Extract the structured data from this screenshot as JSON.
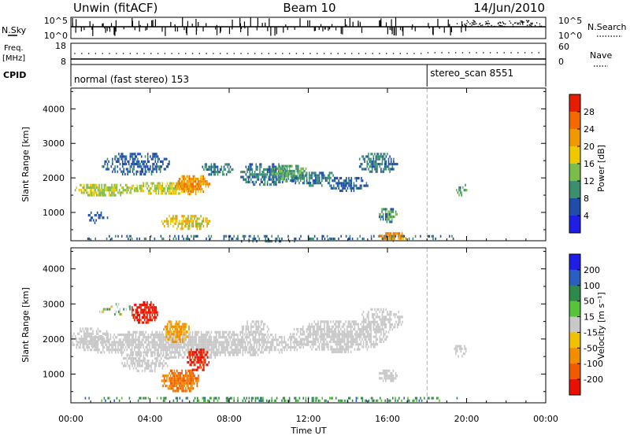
{
  "header": {
    "station": "Unwin (fitACF)",
    "beam": "Beam 10",
    "date": "14/Jun/2010"
  },
  "nsky_panel": {
    "left_label": "N.Sky",
    "right_label": "N.Search",
    "left_ticks": [
      "10^5",
      "10^0"
    ],
    "right_ticks": [
      "10^5",
      "10^0"
    ]
  },
  "freq_panel": {
    "left_label_1": "Freq.",
    "left_label_2": "[MHz]",
    "right_label": "Nave",
    "left_ticks": [
      "18",
      "8"
    ],
    "right_ticks": [
      "60",
      "0"
    ]
  },
  "cpid_panel": {
    "label": "CPID",
    "modes": [
      {
        "name": "normal (fast stereo) 153",
        "start_hour": 0
      },
      {
        "name": "stereo_scan 8551",
        "start_hour": 18
      }
    ]
  },
  "x_axis": {
    "title": "Time UT",
    "ticks": [
      "00:00",
      "04:00",
      "08:00",
      "12:00",
      "16:00",
      "20:00",
      "00:00"
    ],
    "range_hours": [
      0,
      24
    ]
  },
  "chart_data": [
    {
      "type": "heatmap",
      "name": "power",
      "ylabel": "Slant Range [km]",
      "ylim": [
        180,
        4600
      ],
      "yticks": [
        "1000",
        "2000",
        "3000",
        "4000"
      ],
      "colorbar_label": "Power [dB]",
      "colorbar_ticks": [
        "4",
        "8",
        "12",
        "16",
        "20",
        "24",
        "28"
      ],
      "colorbar_colors": [
        "#1e1ee6",
        "#1f4ea8",
        "#3b8f6e",
        "#7bbd4a",
        "#f0c800",
        "#f09a00",
        "#f26a00",
        "#e81c00"
      ],
      "cmap": "power",
      "blobs": [
        {
          "t": [
            0,
            3.2
          ],
          "r": [
            1500,
            1900
          ],
          "v": [
            12,
            18
          ],
          "d": 0.9
        },
        {
          "t": [
            3,
            6.2
          ],
          "r": [
            1550,
            1950
          ],
          "v": [
            13,
            20
          ],
          "d": 0.9
        },
        {
          "t": [
            1.5,
            5
          ],
          "r": [
            2100,
            2800
          ],
          "v": [
            4,
            9
          ],
          "d": 0.65
        },
        {
          "t": [
            5.2,
            7
          ],
          "r": [
            1550,
            2150
          ],
          "v": [
            18,
            28
          ],
          "d": 0.9
        },
        {
          "t": [
            4.5,
            7
          ],
          "r": [
            500,
            1000
          ],
          "v": [
            14,
            24
          ],
          "d": 0.8
        },
        {
          "t": [
            6.5,
            8.3
          ],
          "r": [
            2100,
            2500
          ],
          "v": [
            6,
            12
          ],
          "d": 0.7
        },
        {
          "t": [
            8.5,
            11
          ],
          "r": [
            1800,
            2500
          ],
          "v": [
            5,
            12
          ],
          "d": 0.7
        },
        {
          "t": [
            10,
            12
          ],
          "r": [
            1900,
            2450
          ],
          "v": [
            8,
            16
          ],
          "d": 0.8
        },
        {
          "t": [
            11,
            13.5
          ],
          "r": [
            1800,
            2250
          ],
          "v": [
            6,
            12
          ],
          "d": 0.75
        },
        {
          "t": [
            13,
            15
          ],
          "r": [
            1600,
            2100
          ],
          "v": [
            4,
            9
          ],
          "d": 0.7
        },
        {
          "t": [
            14.5,
            16.5
          ],
          "r": [
            2150,
            2800
          ],
          "v": [
            5,
            12
          ],
          "d": 0.75
        },
        {
          "t": [
            15.5,
            16.5
          ],
          "r": [
            700,
            1200
          ],
          "v": [
            6,
            16
          ],
          "d": 0.85
        },
        {
          "t": [
            15.5,
            17
          ],
          "r": [
            200,
            500
          ],
          "v": [
            18,
            28
          ],
          "d": 0.85
        },
        {
          "t": [
            0,
            20
          ],
          "r": [
            200,
            420
          ],
          "v": [
            4,
            12
          ],
          "d": 0.3
        },
        {
          "t": [
            19.4,
            20
          ],
          "r": [
            1500,
            1900
          ],
          "v": [
            5,
            14
          ],
          "d": 0.55
        },
        {
          "t": [
            0.8,
            2
          ],
          "r": [
            700,
            1100
          ],
          "v": [
            4,
            8
          ],
          "d": 0.5
        }
      ]
    },
    {
      "type": "heatmap",
      "name": "velocity",
      "ylabel": "Slant Range [km]",
      "ylim": [
        180,
        4600
      ],
      "yticks": [
        "1000",
        "2000",
        "3000",
        "4000"
      ],
      "colorbar_label": "Velocity [m s⁻¹]",
      "colorbar_ticks": [
        "200",
        "100",
        "50",
        "15",
        "-15",
        "-50",
        "-100",
        "-200"
      ],
      "colorbar_colors": [
        "#1e1ee6",
        "#2a5fbf",
        "#2e8a4a",
        "#58c23a",
        "#c8c8c8",
        "#f2c000",
        "#f28c00",
        "#f25a00",
        "#e81000"
      ],
      "cmap": "velocity",
      "blobs": [
        {
          "t": [
            0,
            12
          ],
          "r": [
            1500,
            2300
          ],
          "v": [
            -10,
            10
          ],
          "d": 0.9
        },
        {
          "t": [
            11,
            16
          ],
          "r": [
            1650,
            2600
          ],
          "v": [
            -10,
            10
          ],
          "d": 0.85
        },
        {
          "t": [
            14.5,
            16.8
          ],
          "r": [
            2200,
            2950
          ],
          "v": [
            -10,
            10
          ],
          "d": 0.7
        },
        {
          "t": [
            15.5,
            16.5
          ],
          "r": [
            800,
            1200
          ],
          "v": [
            -10,
            10
          ],
          "d": 0.85
        },
        {
          "t": [
            2.5,
            5
          ],
          "r": [
            1100,
            1700
          ],
          "v": [
            -14,
            14
          ],
          "d": 0.75
        },
        {
          "t": [
            3,
            4.4
          ],
          "r": [
            2450,
            3150
          ],
          "v": [
            -220,
            -140
          ],
          "d": 0.85
        },
        {
          "t": [
            4.5,
            6.5
          ],
          "r": [
            500,
            1200
          ],
          "v": [
            -110,
            -40
          ],
          "d": 0.9
        },
        {
          "t": [
            5.8,
            7
          ],
          "r": [
            1100,
            1800
          ],
          "v": [
            -220,
            -120
          ],
          "d": 0.9
        },
        {
          "t": [
            4.6,
            6
          ],
          "r": [
            1900,
            2600
          ],
          "v": [
            -70,
            -20
          ],
          "d": 0.75
        },
        {
          "t": [
            8.5,
            10
          ],
          "r": [
            2100,
            2600
          ],
          "v": [
            -12,
            12
          ],
          "d": 0.6
        },
        {
          "t": [
            0,
            20
          ],
          "r": [
            220,
            420
          ],
          "v": [
            16,
            80
          ],
          "d": 0.35
        },
        {
          "t": [
            0,
            2
          ],
          "r": [
            1800,
            2400
          ],
          "v": [
            -12,
            12
          ],
          "d": 0.7
        },
        {
          "t": [
            19.3,
            20
          ],
          "r": [
            1500,
            1900
          ],
          "v": [
            -10,
            10
          ],
          "d": 0.55
        },
        {
          "t": [
            1.3,
            3
          ],
          "r": [
            2700,
            3100
          ],
          "v": [
            -40,
            40
          ],
          "d": 0.3
        }
      ]
    }
  ],
  "colors": {
    "axis": "#000000",
    "mode_change_line": "#aaaaaa"
  }
}
